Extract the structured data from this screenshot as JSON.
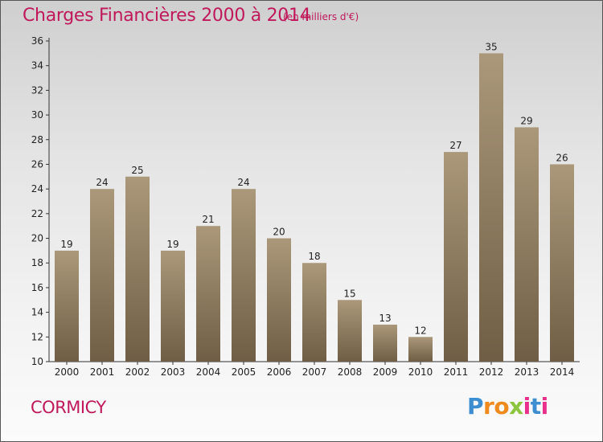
{
  "title": "Charges Financières 2000 à 2014",
  "subtitle": "(en milliers d'€)",
  "place": "CORMICY",
  "logo": {
    "text": "Proxiti",
    "letters": [
      "P",
      "r",
      "o",
      "x",
      "i",
      "t",
      "i"
    ],
    "colors": [
      "#3c8ed0",
      "#f08a1c",
      "#f08a1c",
      "#8cc63f",
      "#e8308c",
      "#3c8ed0",
      "#e8308c"
    ]
  },
  "colors": {
    "title": "#c0185a",
    "bar_top": "#ab987a",
    "bar_bottom": "#6f5e45"
  },
  "chart_data": {
    "type": "bar",
    "categories": [
      "2000",
      "2001",
      "2002",
      "2003",
      "2004",
      "2005",
      "2006",
      "2007",
      "2008",
      "2009",
      "2010",
      "2011",
      "2012",
      "2013",
      "2014"
    ],
    "values": [
      19,
      24,
      25,
      19,
      21,
      24,
      20,
      18,
      15,
      13,
      12,
      27,
      35,
      29,
      26
    ],
    "ylim": [
      10,
      36
    ],
    "yticks": [
      10,
      12,
      14,
      16,
      18,
      20,
      22,
      24,
      26,
      28,
      30,
      32,
      34,
      36
    ],
    "grid": false,
    "data_labels": true
  }
}
